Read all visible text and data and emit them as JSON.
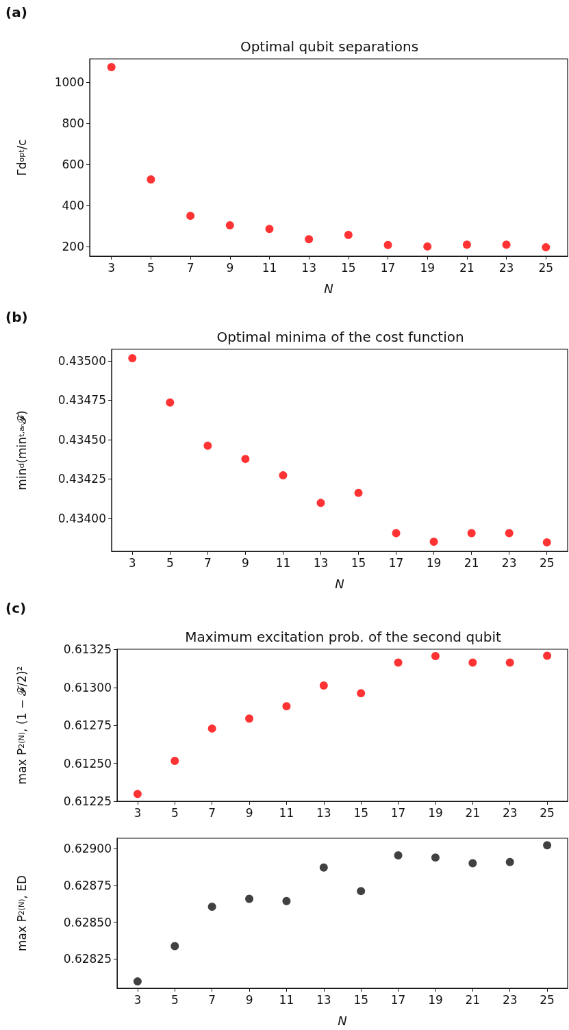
{
  "chart_data": [
    {
      "type": "scatter",
      "title": "Optimal qubit separations",
      "annotations": [
        "(a)"
      ],
      "xlabel": "N",
      "ylabel": "Γd$_{opt}$/c",
      "marker": "circle",
      "grid": false,
      "x": [
        3,
        5,
        7,
        9,
        11,
        13,
        15,
        17,
        19,
        21,
        23,
        25
      ],
      "xlim": [
        1.9,
        26.1
      ],
      "xticks": [
        3,
        5,
        7,
        9,
        11,
        13,
        15,
        17,
        19,
        21,
        23,
        25
      ],
      "ylim": [
        155,
        1114
      ],
      "yticks": [
        200,
        400,
        600,
        800,
        1000
      ],
      "series": [
        {
          "color": "#ff0000",
          "values": [
            1074,
            528,
            351,
            305,
            287,
            237,
            258,
            209,
            202,
            211,
            211,
            198
          ]
        }
      ]
    },
    {
      "type": "scatter",
      "title": "Optimal minima of the cost function",
      "annotations": [
        "(b)"
      ],
      "xlabel": "N",
      "ylabel": "min$_{d}$(min$_{t,aₙ}$𝓕)",
      "marker": "circle",
      "grid": false,
      "x": [
        3,
        5,
        7,
        9,
        11,
        13,
        15,
        17,
        19,
        21,
        23,
        25
      ],
      "xlim": [
        1.9,
        26.1
      ],
      "xticks": [
        3,
        5,
        7,
        9,
        11,
        13,
        15,
        17,
        19,
        21,
        23,
        25
      ],
      "ylim": [
        0.433791,
        0.435073
      ],
      "yticks": [
        {
          "value": 0.434,
          "label": "0.43400"
        },
        {
          "value": 0.43425,
          "label": "0.43425"
        },
        {
          "value": 0.4345,
          "label": "0.43450"
        },
        {
          "value": 0.43475,
          "label": "0.43475"
        },
        {
          "value": 0.435,
          "label": "0.43500"
        }
      ],
      "series": [
        {
          "color": "#ff0000",
          "values": [
            0.435016,
            0.434735,
            0.434461,
            0.434377,
            0.434273,
            0.434098,
            0.434162,
            0.433906,
            0.433852,
            0.433906,
            0.433906,
            0.433848
          ]
        }
      ]
    },
    {
      "type": "scatter",
      "title": "Maximum excitation prob. of the second qubit",
      "annotations": [
        "(c)"
      ],
      "ylabel": "max P$_{2}$$^{(N)}$, (1 − 𝓕/2)²",
      "marker": "circle",
      "grid": false,
      "x": [
        3,
        5,
        7,
        9,
        11,
        13,
        15,
        17,
        19,
        21,
        23,
        25
      ],
      "xlim": [
        1.9,
        26.1
      ],
      "xticks": [
        3,
        5,
        7,
        9,
        11,
        13,
        15,
        17,
        19,
        21,
        23,
        25
      ],
      "ylim": [
        0.61225,
        0.613252
      ],
      "yticks": [
        {
          "value": 0.61225,
          "label": "0.61225"
        },
        {
          "value": 0.6125,
          "label": "0.61250"
        },
        {
          "value": 0.61275,
          "label": "0.61275"
        },
        {
          "value": 0.613,
          "label": "0.61300"
        },
        {
          "value": 0.61325,
          "label": "0.61325"
        }
      ],
      "series": [
        {
          "color": "#ff0000",
          "values": [
            0.612298,
            0.612516,
            0.612729,
            0.612795,
            0.612876,
            0.613013,
            0.612962,
            0.613164,
            0.613207,
            0.613164,
            0.613164,
            0.613209
          ]
        }
      ]
    },
    {
      "type": "scatter",
      "xlabel": "N",
      "ylabel": "max P$_{2}$$^{(N)}$, ED",
      "marker": "circle",
      "grid": false,
      "x": [
        3,
        5,
        7,
        9,
        11,
        13,
        15,
        17,
        19,
        21,
        23,
        25
      ],
      "xlim": [
        1.9,
        26.1
      ],
      "xticks": [
        3,
        5,
        7,
        9,
        11,
        13,
        15,
        17,
        19,
        21,
        23,
        25
      ],
      "ylim": [
        0.628051,
        0.62907
      ],
      "yticks": [
        {
          "value": 0.62825,
          "label": "0.62825"
        },
        {
          "value": 0.6285,
          "label": "0.62850"
        },
        {
          "value": 0.62875,
          "label": "0.62875"
        },
        {
          "value": 0.629,
          "label": "0.62900"
        }
      ],
      "series": [
        {
          "color": "#111111",
          "values": [
            0.628097,
            0.628337,
            0.628605,
            0.628658,
            0.628643,
            0.628871,
            0.628711,
            0.628954,
            0.628939,
            0.6289,
            0.628908,
            0.629022
          ]
        }
      ]
    }
  ]
}
